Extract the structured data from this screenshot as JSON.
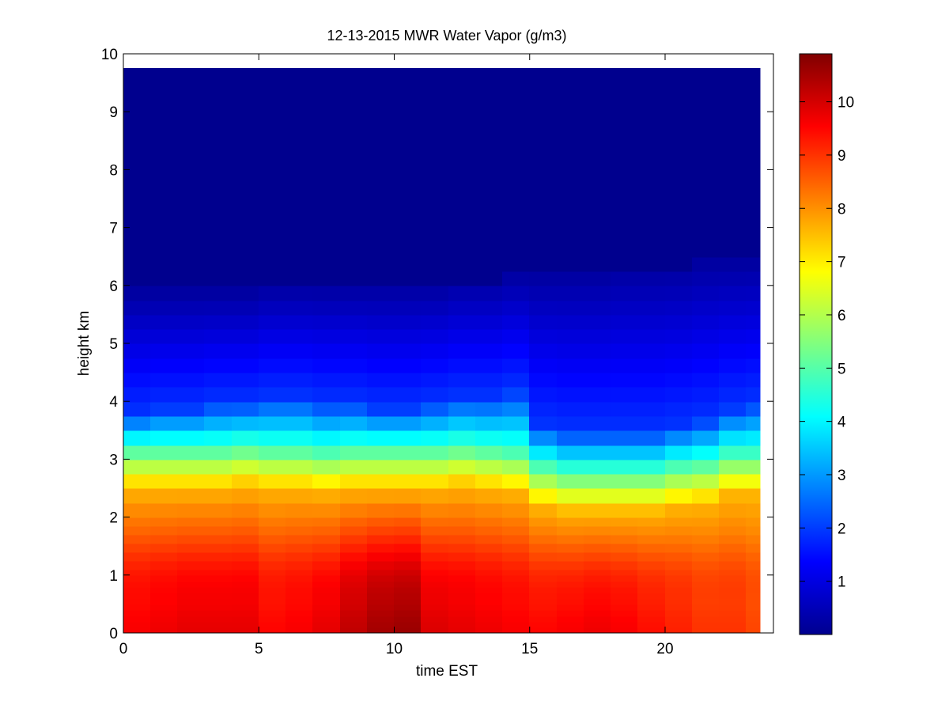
{
  "chart_data": {
    "type": "heatmap",
    "title": "12-13-2015 MWR Water Vapor (g/m3)",
    "xlabel": "time EST",
    "ylabel": "height km",
    "xlim": [
      0,
      24
    ],
    "ylim": [
      0,
      10
    ],
    "x_ticks": [
      0,
      5,
      10,
      15,
      20
    ],
    "y_ticks": [
      0,
      1,
      2,
      3,
      4,
      5,
      6,
      7,
      8,
      9,
      10
    ],
    "grid": false,
    "colormap": "jet",
    "colorbar": {
      "clim": [
        0,
        10.9
      ],
      "ticks": [
        1,
        2,
        3,
        4,
        5,
        6,
        7,
        8,
        9,
        10
      ]
    },
    "time_step": 1,
    "x": [
      0,
      1,
      2,
      3,
      4,
      5,
      6,
      7,
      8,
      9,
      10,
      11,
      12,
      13,
      14,
      15,
      16,
      17,
      18,
      19,
      20,
      21,
      22,
      23
    ],
    "data_extent": {
      "x_max": 23.5,
      "y_max": 9.75
    },
    "profile_heights_km": [
      0,
      0.1,
      0.2,
      0.3,
      0.4,
      0.5,
      0.6,
      0.7,
      0.8,
      0.9,
      1.0,
      1.1,
      1.25,
      1.4,
      1.55,
      1.7,
      1.85,
      2.0,
      2.25,
      2.5,
      2.75,
      3.0,
      3.25,
      3.5,
      3.75,
      4.0,
      4.25,
      4.5,
      4.75,
      5.0,
      5.25,
      5.5,
      5.75,
      6.0,
      6.25,
      6.5,
      6.75,
      7.0,
      7.25,
      7.5,
      8.0,
      8.5,
      9.0,
      9.5,
      9.75
    ],
    "surface_value": [
      9.6,
      9.7,
      9.8,
      9.8,
      9.8,
      9.5,
      9.6,
      9.8,
      10.2,
      10.5,
      10.6,
      9.9,
      9.8,
      9.7,
      9.6,
      9.5,
      9.6,
      9.7,
      9.6,
      9.4,
      9.2,
      9.0,
      9.0,
      8.8
    ],
    "boundary_layer_top_km": [
      2.5,
      2.5,
      2.5,
      2.5,
      2.55,
      2.5,
      2.5,
      2.45,
      2.5,
      2.5,
      2.5,
      2.5,
      2.55,
      2.5,
      2.45,
      2.2,
      2.1,
      2.1,
      2.1,
      2.1,
      2.2,
      2.25,
      2.4,
      2.4
    ],
    "moist_layer_top_km": [
      3.8,
      3.9,
      3.9,
      4.0,
      4.0,
      4.1,
      4.1,
      4.0,
      4.0,
      3.9,
      3.9,
      4.0,
      4.1,
      4.1,
      4.2,
      3.6,
      3.5,
      3.5,
      3.5,
      3.5,
      3.6,
      3.7,
      3.9,
      4.0
    ],
    "dry_top_km": [
      5.9,
      5.9,
      5.9,
      5.9,
      5.9,
      6.0,
      6.0,
      6.0,
      6.0,
      6.0,
      6.0,
      6.0,
      6.1,
      6.1,
      6.2,
      6.2,
      6.2,
      6.2,
      6.3,
      6.3,
      6.3,
      6.4,
      6.4,
      6.4
    ]
  }
}
